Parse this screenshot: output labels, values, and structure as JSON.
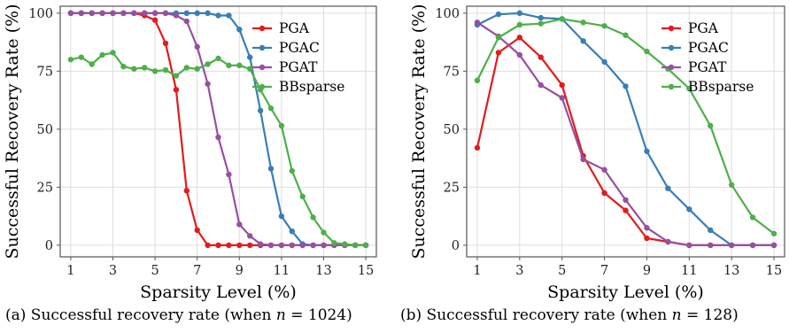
{
  "colors": {
    "PGA": "#e41a1c",
    "PGAC": "#377eb8",
    "PGAT": "#984ea3",
    "BBsparse": "#4daf4a",
    "grid": "#dddddd",
    "frame": "#555555"
  },
  "chart_data": [
    {
      "type": "line",
      "xlabel": "Sparsity Level (%)",
      "ylabel": "Successful Recovery Rate (%)",
      "xlim": [
        0.5,
        15.5
      ],
      "ylim": [
        -5,
        103
      ],
      "xticks": [
        1,
        3,
        5,
        7,
        9,
        11,
        13,
        15
      ],
      "yticks": [
        0,
        25,
        50,
        75,
        100
      ],
      "grid": true,
      "legend_position": "top-right",
      "caption": {
        "label": "(a) Successful recovery rate (when",
        "var": "n",
        "eq": "= 1024)"
      },
      "series": [
        {
          "name": "PGA",
          "x": [
            1,
            1.5,
            2,
            2.5,
            3,
            3.5,
            4,
            4.5,
            5,
            5.5,
            6,
            6.5,
            7,
            7.5,
            8,
            8.5,
            9,
            9.5,
            10,
            10.5,
            11,
            11.5,
            12,
            12.5,
            13,
            13.5,
            14,
            14.5,
            15
          ],
          "y": [
            100,
            100,
            100,
            100,
            100,
            100,
            100,
            99,
            97,
            87,
            67,
            23.5,
            6.5,
            0,
            0,
            0,
            0,
            0,
            0,
            0,
            0,
            0,
            0,
            0,
            0,
            0,
            0,
            0,
            0
          ]
        },
        {
          "name": "PGAC",
          "x": [
            1,
            1.5,
            2,
            2.5,
            3,
            3.5,
            4,
            4.5,
            5,
            5.5,
            6,
            6.5,
            7,
            7.5,
            8,
            8.5,
            9,
            9.5,
            10,
            10.5,
            11,
            11.5,
            12,
            12.5,
            13,
            13.5,
            14,
            14.5,
            15
          ],
          "y": [
            100,
            100,
            100,
            100,
            100,
            100,
            100,
            100,
            100,
            100,
            100,
            100,
            100,
            100,
            99,
            99,
            93,
            81,
            58,
            33,
            12.5,
            6,
            0.5,
            0,
            0,
            0,
            0,
            0,
            0
          ]
        },
        {
          "name": "PGAT",
          "x": [
            1,
            1.5,
            2,
            2.5,
            3,
            3.5,
            4,
            4.5,
            5,
            5.5,
            6,
            6.5,
            7,
            7.5,
            8,
            8.5,
            9,
            9.5,
            10,
            10.5,
            11,
            11.5,
            12,
            12.5,
            13,
            13.5,
            14,
            14.5,
            15
          ],
          "y": [
            100,
            100,
            100,
            100,
            100,
            100,
            100,
            100,
            100,
            100,
            99,
            96.5,
            85.5,
            69.5,
            46.5,
            30.5,
            9,
            4,
            0.5,
            0,
            0,
            0,
            0,
            0,
            0,
            0,
            0,
            0,
            0
          ]
        },
        {
          "name": "BBsparse",
          "x": [
            1,
            1.5,
            2,
            2.5,
            3,
            3.5,
            4,
            4.5,
            5,
            5.5,
            6,
            6.5,
            7,
            7.5,
            8,
            8.5,
            9,
            9.5,
            10,
            10.5,
            11,
            11.5,
            12,
            12.5,
            13,
            13.5,
            14,
            14.5,
            15
          ],
          "y": [
            80,
            81,
            78,
            82,
            83,
            77,
            76,
            76.5,
            75,
            75.5,
            73,
            76.5,
            76,
            78,
            80.5,
            77.5,
            77.5,
            76,
            67,
            59,
            51.5,
            32,
            21,
            12,
            5.5,
            1,
            0.5,
            0,
            0
          ]
        }
      ]
    },
    {
      "type": "line",
      "xlabel": "Sparsity Level (%)",
      "ylabel": "Successful Recovery Rate (%)",
      "xlim": [
        0.5,
        15.5
      ],
      "ylim": [
        -5,
        103
      ],
      "xticks": [
        1,
        3,
        5,
        7,
        9,
        11,
        13,
        15
      ],
      "yticks": [
        0,
        25,
        50,
        75,
        100
      ],
      "grid": true,
      "legend_position": "top-right",
      "caption": {
        "label": "(b) Successful recovery rate (when",
        "var": "n",
        "eq": "= 128)"
      },
      "series": [
        {
          "name": "PGA",
          "x": [
            1,
            2,
            3,
            4,
            5,
            6,
            7,
            8,
            9,
            10,
            11,
            12,
            13,
            14,
            15
          ],
          "y": [
            42,
            83,
            89.5,
            81,
            69,
            38.5,
            22.5,
            15,
            3,
            1.5,
            0,
            0,
            0,
            0,
            0
          ]
        },
        {
          "name": "PGAC",
          "x": [
            1,
            2,
            3,
            4,
            5,
            6,
            7,
            8,
            9,
            10,
            11,
            12,
            13,
            14,
            15
          ],
          "y": [
            95,
            99.5,
            100,
            98,
            97.5,
            88,
            79,
            68.5,
            40.5,
            24.5,
            15.5,
            6.5,
            0,
            0,
            0
          ]
        },
        {
          "name": "PGAT",
          "x": [
            1,
            2,
            3,
            4,
            5,
            6,
            7,
            8,
            9,
            10,
            11,
            12,
            13,
            14,
            15
          ],
          "y": [
            96,
            90,
            82,
            69,
            63.5,
            37,
            32.5,
            19.5,
            7.5,
            1.5,
            0,
            0,
            0,
            0,
            0
          ]
        },
        {
          "name": "BBsparse",
          "x": [
            1,
            2,
            3,
            4,
            5,
            6,
            7,
            8,
            9,
            10,
            11,
            12,
            13,
            14,
            15
          ],
          "y": [
            71,
            89.5,
            95,
            95.5,
            97.5,
            96,
            94.5,
            90.5,
            83.5,
            76,
            67.5,
            51.5,
            26,
            12,
            5
          ]
        }
      ]
    }
  ]
}
